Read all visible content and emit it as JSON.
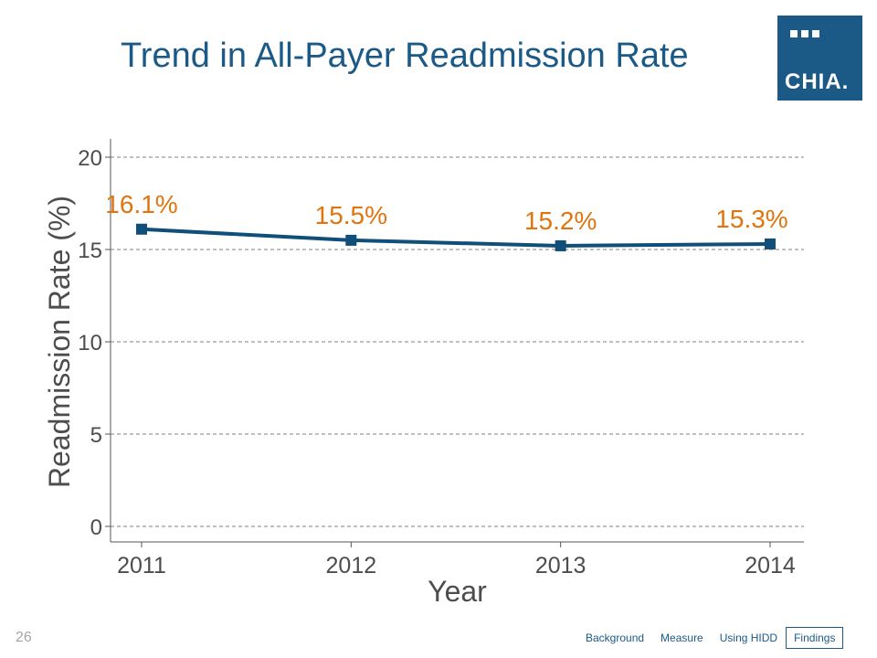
{
  "slide": {
    "title": "Trend in All-Payer Readmission Rate",
    "page_number": "26",
    "logo_text": "CHIA."
  },
  "nav": {
    "items": [
      {
        "label": "Background",
        "active": false
      },
      {
        "label": "Measure",
        "active": false
      },
      {
        "label": "Using HIDD",
        "active": false
      },
      {
        "label": "Findings",
        "active": true
      }
    ]
  },
  "colors": {
    "accent": "#1b5a86",
    "line": "#0f4f7a",
    "data_label": "#e0740e",
    "axis_text": "#4d4d4d",
    "grid": "#808080"
  },
  "chart_data": {
    "type": "line",
    "title": "",
    "xlabel": "Year",
    "ylabel": "Readmission Rate (%)",
    "x": [
      "2011",
      "2012",
      "2013",
      "2014"
    ],
    "series": [
      {
        "values": [
          16.1,
          15.5,
          15.2,
          15.3
        ]
      }
    ],
    "data_labels": [
      "16.1%",
      "15.5%",
      "15.2%",
      "15.3%"
    ],
    "ylim": [
      0,
      20
    ],
    "yticks": [
      0,
      5,
      10,
      15,
      20
    ],
    "grid": "horizontal dashed",
    "legend": "none"
  }
}
